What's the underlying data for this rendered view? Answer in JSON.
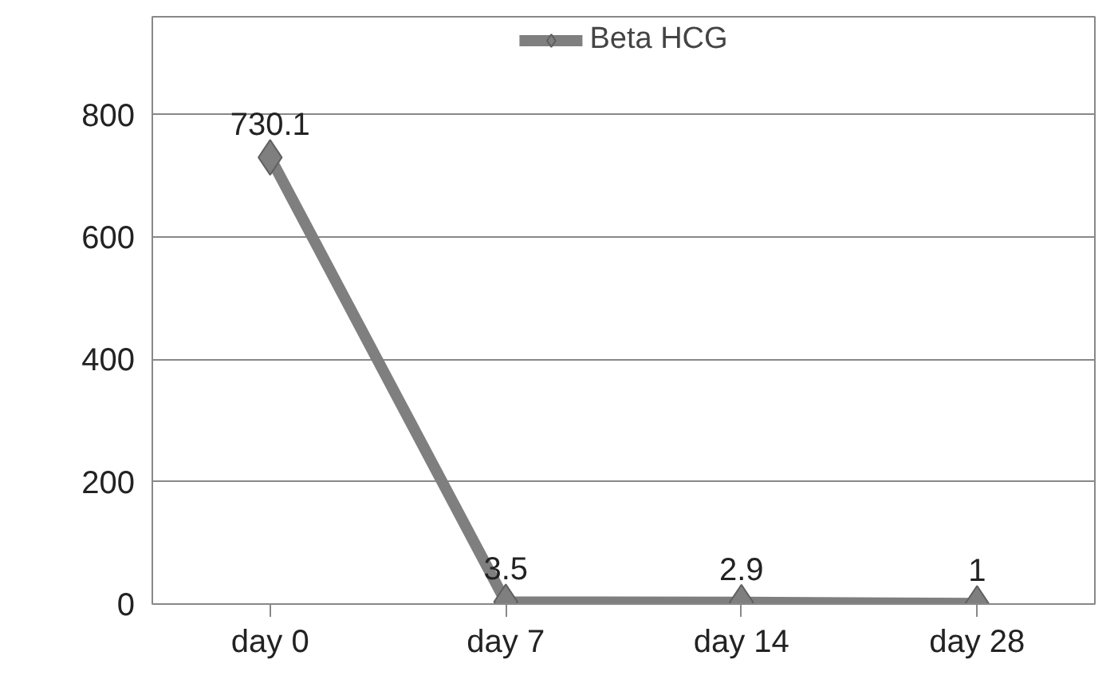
{
  "chart_data": {
    "type": "line",
    "categories": [
      "day 0",
      "day 7",
      "day 14",
      "day 28"
    ],
    "series": [
      {
        "name": "Beta HCG",
        "color": "#7f7f7f",
        "values": [
          730.1,
          3.5,
          2.9,
          1
        ]
      }
    ],
    "ylim": [
      0,
      960
    ],
    "yticks": [
      0,
      200,
      400,
      600,
      800
    ],
    "grid": "y",
    "legend": "top",
    "marker": "diamond",
    "line_style": "solid",
    "data_labels": true
  }
}
